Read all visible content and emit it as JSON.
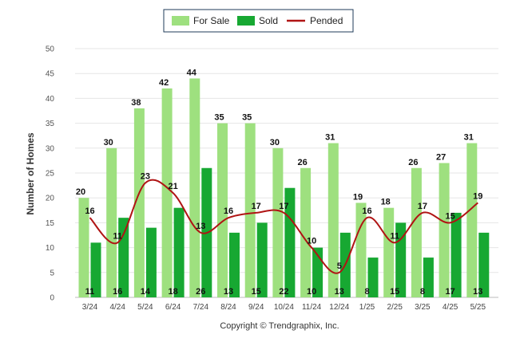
{
  "copyright": "Copyright © Trendgraphix, Inc.",
  "chart_data": {
    "type": "bar",
    "title": "",
    "xlabel": "",
    "ylabel": "Number of Homes",
    "ylim": [
      0,
      50
    ],
    "yticks": [
      0,
      5,
      10,
      15,
      20,
      25,
      30,
      35,
      40,
      45,
      50
    ],
    "grid": true,
    "legend_position": "top-center",
    "categories": [
      "3/24",
      "4/24",
      "5/24",
      "6/24",
      "7/24",
      "8/24",
      "9/24",
      "10/24",
      "11/24",
      "12/24",
      "1/25",
      "2/25",
      "3/25",
      "4/25",
      "5/25"
    ],
    "series": [
      {
        "name": "For Sale",
        "type": "bar",
        "color": "#9ee07f",
        "values": [
          20,
          30,
          38,
          42,
          44,
          35,
          35,
          30,
          26,
          31,
          19,
          18,
          26,
          27,
          31
        ]
      },
      {
        "name": "Sold",
        "type": "bar",
        "color": "#17a832",
        "values": [
          11,
          16,
          14,
          18,
          26,
          13,
          15,
          22,
          10,
          13,
          8,
          15,
          8,
          17,
          13
        ]
      },
      {
        "name": "Pended",
        "type": "line",
        "color": "#b01414",
        "values": [
          16,
          11,
          23,
          21,
          13,
          16,
          17,
          17,
          10,
          5,
          16,
          11,
          17,
          15,
          19
        ]
      }
    ]
  }
}
